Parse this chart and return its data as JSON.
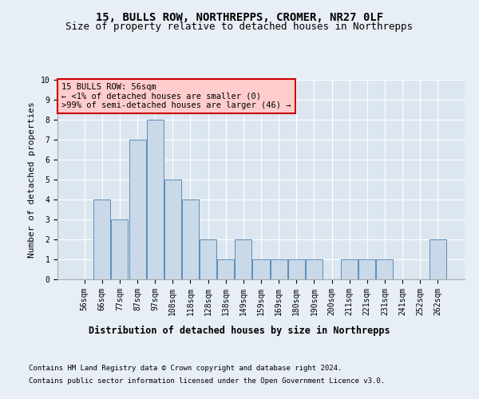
{
  "title": "15, BULLS ROW, NORTHREPPS, CROMER, NR27 0LF",
  "subtitle": "Size of property relative to detached houses in Northrepps",
  "xlabel": "Distribution of detached houses by size in Northrepps",
  "ylabel": "Number of detached properties",
  "bins": [
    "56sqm",
    "66sqm",
    "77sqm",
    "87sqm",
    "97sqm",
    "108sqm",
    "118sqm",
    "128sqm",
    "138sqm",
    "149sqm",
    "159sqm",
    "169sqm",
    "180sqm",
    "190sqm",
    "200sqm",
    "211sqm",
    "221sqm",
    "231sqm",
    "241sqm",
    "252sqm",
    "262sqm"
  ],
  "values": [
    0,
    4,
    3,
    7,
    8,
    5,
    4,
    2,
    1,
    2,
    1,
    1,
    1,
    1,
    0,
    1,
    1,
    1,
    0,
    0,
    2
  ],
  "highlight_index": 0,
  "bar_color": "#c9d9e8",
  "bar_edge_color": "#5b8db8",
  "highlight_color": "#ffcccc",
  "highlight_edge_color": "#cc0000",
  "annotation_text": "15 BULLS ROW: 56sqm\n← <1% of detached houses are smaller (0)\n>99% of semi-detached houses are larger (46) →",
  "annotation_box_color": "#ffcccc",
  "annotation_box_edge": "#cc0000",
  "ylim": [
    0,
    10
  ],
  "yticks": [
    0,
    1,
    2,
    3,
    4,
    5,
    6,
    7,
    8,
    9,
    10
  ],
  "footer1": "Contains HM Land Registry data © Crown copyright and database right 2024.",
  "footer2": "Contains public sector information licensed under the Open Government Licence v3.0.",
  "bg_color": "#e8eef5",
  "plot_bg_color": "#dce6f0",
  "grid_color": "#ffffff",
  "title_fontsize": 10,
  "subtitle_fontsize": 9,
  "tick_fontsize": 7,
  "ylabel_fontsize": 8,
  "xlabel_fontsize": 8.5,
  "footer_fontsize": 6.5,
  "annotation_fontsize": 7.5
}
